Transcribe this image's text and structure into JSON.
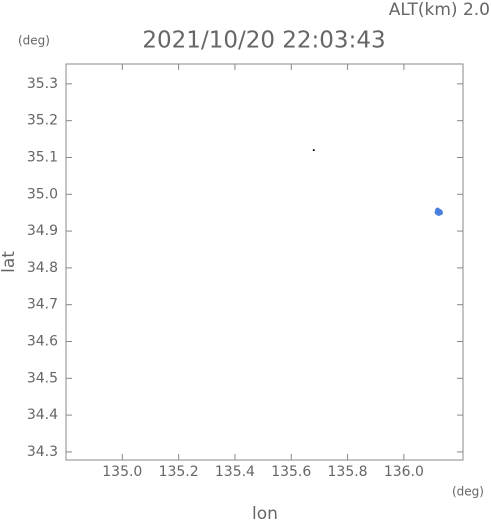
{
  "chart_data": {
    "type": "scatter",
    "title": "2021/10/20 22:03:43",
    "annotation": "ALT(km) 2.0",
    "y_unit": "(deg)",
    "x_unit": "(deg)",
    "xlabel": "lon",
    "ylabel": "lat",
    "xlim": [
      134.8,
      136.21
    ],
    "ylim": [
      34.278,
      35.354
    ],
    "xticks": [
      {
        "value": 135,
        "label": "135.0"
      },
      135.2,
      135.4,
      135.6,
      135.8,
      {
        "value": 136,
        "label": "136.0"
      }
    ],
    "yticks": [
      34.3,
      34.4,
      34.5,
      34.6,
      34.7,
      34.8,
      34.9,
      {
        "value": 35,
        "label": "35.0"
      },
      35.1,
      35.2,
      35.3
    ],
    "series": [
      {
        "color": "#000000",
        "x": [
          135.68
        ],
        "values": [
          35.12
        ]
      },
      {
        "color": "#4a7fe0",
        "x": [
          136.12,
          136.128,
          136.124,
          136.118,
          136.13
        ],
        "values": [
          34.957,
          34.953,
          34.948,
          34.951,
          34.95
        ]
      }
    ]
  }
}
